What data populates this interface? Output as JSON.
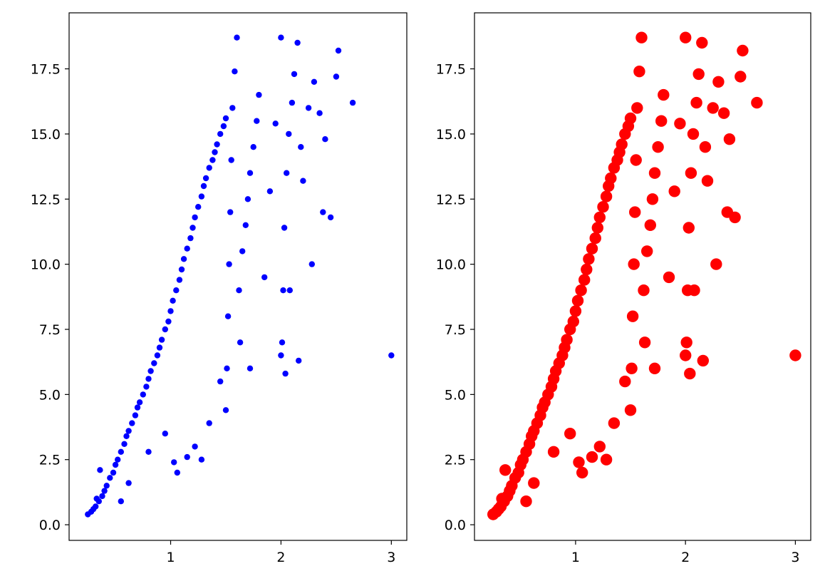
{
  "chart_data": [
    {
      "type": "scatter",
      "title": "",
      "xlabel": "",
      "ylabel": "",
      "xlim": [
        0.08,
        3.14
      ],
      "ylim": [
        -0.6,
        19.65
      ],
      "xticks": [
        1,
        2,
        3
      ],
      "yticks": [
        0.0,
        2.5,
        5.0,
        7.5,
        10.0,
        12.5,
        15.0,
        17.5
      ],
      "xtick_labels": [
        "1",
        "2",
        "3"
      ],
      "ytick_labels": [
        "0.0",
        "2.5",
        "5.0",
        "7.5",
        "10.0",
        "12.5",
        "15.0",
        "17.5"
      ],
      "grid": false,
      "color": "#0000ff",
      "marker_size": "small",
      "series": [
        {
          "x": [
            0.25,
            0.28,
            0.3,
            0.32,
            0.35,
            0.38,
            0.4,
            0.42,
            0.45,
            0.48,
            0.5,
            0.52,
            0.55,
            0.58,
            0.6,
            0.62,
            0.65,
            0.68,
            0.7,
            0.72,
            0.75,
            0.78,
            0.8,
            0.82,
            0.85,
            0.88,
            0.9,
            0.92,
            0.95,
            0.98,
            1.0,
            1.02,
            1.05,
            1.08,
            1.1,
            1.12,
            1.15,
            1.18,
            1.2,
            1.22,
            1.25,
            1.28,
            1.3,
            1.32,
            1.35,
            1.38,
            1.4,
            1.42,
            1.45,
            1.48,
            1.5,
            1.5,
            1.51,
            1.52,
            1.53,
            1.54,
            1.55,
            1.56,
            1.58,
            1.6,
            1.62,
            1.65,
            1.68,
            1.7,
            1.72,
            1.75,
            1.78,
            1.8,
            1.85,
            1.9,
            1.95,
            2.0,
            2.0,
            2.01,
            2.02,
            2.03,
            2.05,
            2.07,
            2.1,
            2.12,
            2.15,
            2.18,
            2.2,
            2.25,
            2.3,
            2.35,
            2.4,
            2.45,
            2.5,
            2.52,
            2.65,
            3.0,
            0.33,
            0.36,
            0.55,
            0.62,
            0.8,
            0.95,
            1.03,
            1.06,
            1.15,
            1.22,
            1.28,
            1.35,
            1.45,
            1.63,
            1.72,
            2.04,
            2.08,
            2.16,
            2.28,
            2.38
          ],
          "y": [
            0.4,
            0.5,
            0.6,
            0.7,
            0.9,
            1.1,
            1.3,
            1.5,
            1.8,
            2.0,
            2.3,
            2.5,
            2.8,
            3.1,
            3.4,
            3.6,
            3.9,
            4.2,
            4.5,
            4.7,
            5.0,
            5.3,
            5.6,
            5.9,
            6.2,
            6.5,
            6.8,
            7.1,
            7.5,
            7.8,
            8.2,
            8.6,
            9.0,
            9.4,
            9.8,
            10.2,
            10.6,
            11.0,
            11.4,
            11.8,
            12.2,
            12.6,
            13.0,
            13.3,
            13.7,
            14.0,
            14.3,
            14.6,
            15.0,
            15.3,
            15.6,
            4.4,
            6.0,
            8.0,
            10.0,
            12.0,
            14.0,
            16.0,
            17.4,
            18.7,
            9.0,
            10.5,
            11.5,
            12.5,
            13.5,
            14.5,
            15.5,
            16.5,
            9.5,
            12.8,
            15.4,
            18.7,
            6.5,
            7.0,
            9.0,
            11.4,
            13.5,
            15.0,
            16.2,
            17.3,
            18.5,
            14.5,
            13.2,
            16.0,
            17.0,
            15.8,
            14.8,
            11.8,
            17.2,
            18.2,
            16.2,
            6.5,
            1.0,
            2.1,
            0.9,
            1.6,
            2.8,
            3.5,
            2.4,
            2.0,
            2.6,
            3.0,
            2.5,
            3.9,
            5.5,
            7.0,
            6.0,
            5.8,
            9.0,
            6.3,
            10.0,
            12.0
          ]
        }
      ]
    },
    {
      "type": "scatter",
      "title": "",
      "xlabel": "",
      "ylabel": "",
      "xlim": [
        0.08,
        3.14
      ],
      "ylim": [
        -0.6,
        19.65
      ],
      "xticks": [
        1,
        2,
        3
      ],
      "yticks": [
        0.0,
        2.5,
        5.0,
        7.5,
        10.0,
        12.5,
        15.0,
        17.5
      ],
      "xtick_labels": [
        "1",
        "2",
        "3"
      ],
      "ytick_labels": [
        "0.0",
        "2.5",
        "5.0",
        "7.5",
        "10.0",
        "12.5",
        "15.0",
        "17.5"
      ],
      "grid": false,
      "color": "#ff0000",
      "marker_size": "large",
      "series": [
        {
          "x": [
            0.25,
            0.28,
            0.3,
            0.32,
            0.35,
            0.38,
            0.4,
            0.42,
            0.45,
            0.48,
            0.5,
            0.52,
            0.55,
            0.58,
            0.6,
            0.62,
            0.65,
            0.68,
            0.7,
            0.72,
            0.75,
            0.78,
            0.8,
            0.82,
            0.85,
            0.88,
            0.9,
            0.92,
            0.95,
            0.98,
            1.0,
            1.02,
            1.05,
            1.08,
            1.1,
            1.12,
            1.15,
            1.18,
            1.2,
            1.22,
            1.25,
            1.28,
            1.3,
            1.32,
            1.35,
            1.38,
            1.4,
            1.42,
            1.45,
            1.48,
            1.5,
            1.5,
            1.51,
            1.52,
            1.53,
            1.54,
            1.55,
            1.56,
            1.58,
            1.6,
            1.62,
            1.65,
            1.68,
            1.7,
            1.72,
            1.75,
            1.78,
            1.8,
            1.85,
            1.9,
            1.95,
            2.0,
            2.0,
            2.01,
            2.02,
            2.03,
            2.05,
            2.07,
            2.1,
            2.12,
            2.15,
            2.18,
            2.2,
            2.25,
            2.3,
            2.35,
            2.4,
            2.45,
            2.5,
            2.52,
            2.65,
            3.0,
            0.33,
            0.36,
            0.55,
            0.62,
            0.8,
            0.95,
            1.03,
            1.06,
            1.15,
            1.22,
            1.28,
            1.35,
            1.45,
            1.63,
            1.72,
            2.04,
            2.08,
            2.16,
            2.28,
            2.38
          ],
          "y": [
            0.4,
            0.5,
            0.6,
            0.7,
            0.9,
            1.1,
            1.3,
            1.5,
            1.8,
            2.0,
            2.3,
            2.5,
            2.8,
            3.1,
            3.4,
            3.6,
            3.9,
            4.2,
            4.5,
            4.7,
            5.0,
            5.3,
            5.6,
            5.9,
            6.2,
            6.5,
            6.8,
            7.1,
            7.5,
            7.8,
            8.2,
            8.6,
            9.0,
            9.4,
            9.8,
            10.2,
            10.6,
            11.0,
            11.4,
            11.8,
            12.2,
            12.6,
            13.0,
            13.3,
            13.7,
            14.0,
            14.3,
            14.6,
            15.0,
            15.3,
            15.6,
            4.4,
            6.0,
            8.0,
            10.0,
            12.0,
            14.0,
            16.0,
            17.4,
            18.7,
            9.0,
            10.5,
            11.5,
            12.5,
            13.5,
            14.5,
            15.5,
            16.5,
            9.5,
            12.8,
            15.4,
            18.7,
            6.5,
            7.0,
            9.0,
            11.4,
            13.5,
            15.0,
            16.2,
            17.3,
            18.5,
            14.5,
            13.2,
            16.0,
            17.0,
            15.8,
            14.8,
            11.8,
            17.2,
            18.2,
            16.2,
            6.5,
            1.0,
            2.1,
            0.9,
            1.6,
            2.8,
            3.5,
            2.4,
            2.0,
            2.6,
            3.0,
            2.5,
            3.9,
            5.5,
            7.0,
            6.0,
            5.8,
            9.0,
            6.3,
            10.0,
            12.0
          ]
        }
      ]
    }
  ]
}
